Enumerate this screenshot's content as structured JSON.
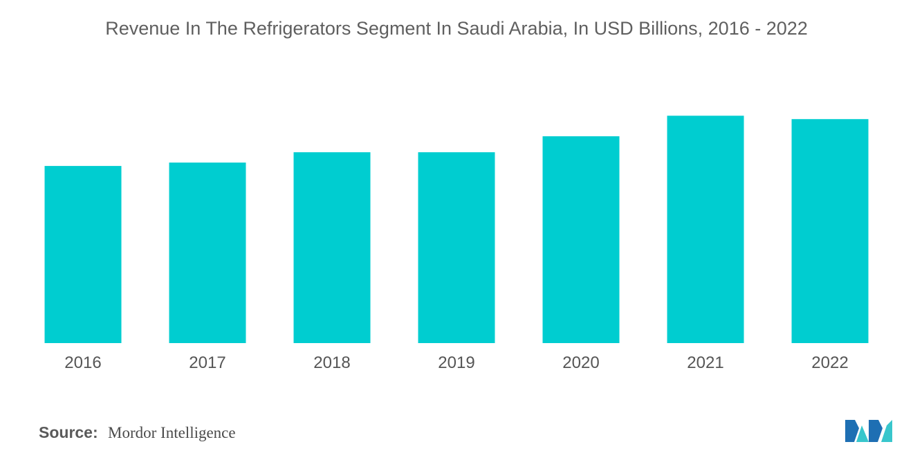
{
  "title": "Revenue In The Refrigerators Segment In Saudi Arabia, In USD Billions, 2016 - 2022",
  "source": {
    "label": "Source:",
    "name": "Mordor Intelligence"
  },
  "logo": {
    "icon": "mordor-intelligence-logo",
    "colors": [
      "#1e6fb3",
      "#38c6cc"
    ]
  },
  "colors": {
    "bar": "#00cdd0",
    "axis_text": "#555555",
    "title": "#5f5f5f"
  },
  "chart_data": {
    "type": "bar",
    "title": "Revenue In The Refrigerators Segment In Saudi Arabia, In USD Billions, 2016 - 2022",
    "xlabel": "",
    "ylabel": "",
    "categories": [
      "2016",
      "2017",
      "2018",
      "2019",
      "2020",
      "2021",
      "2022"
    ],
    "values": [
      1.55,
      1.58,
      1.67,
      1.67,
      1.81,
      1.99,
      1.96
    ],
    "ylim": [
      0,
      2.5
    ],
    "y_axis_visible": false,
    "grid": false,
    "legend": "none"
  }
}
